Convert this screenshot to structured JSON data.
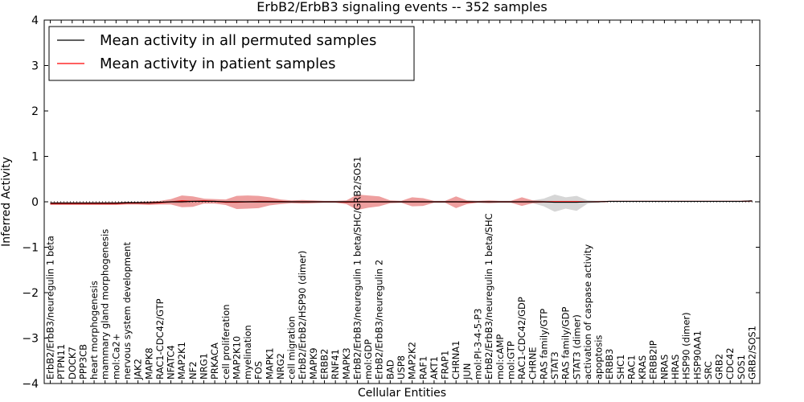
{
  "chart_data": {
    "type": "line",
    "title": "ErbB2/ErbB3 signaling events -- 352 samples",
    "xlabel": "Cellular Entities",
    "ylabel": "Inferred Activity",
    "ylim": [
      -4,
      4
    ],
    "yticks": [
      "4",
      "3",
      "2",
      "1",
      "0",
      "−1",
      "−2",
      "−3",
      "−4"
    ],
    "legend_position": "top-left",
    "colors": {
      "permuted": "#000000",
      "patient": "#ff0000",
      "patient_band": "#e05050",
      "permuted_band": "#bbbbbb"
    },
    "categories": [
      "ErbB2/ErbB3/neuregulin 1 beta",
      "PTPN11",
      "DOCK7",
      "PPP3CB",
      "heart morphogenesis",
      "mammary gland morphogenesis",
      "mol:Ca2+",
      "nervous system development",
      "JAK2",
      "MAPK8",
      "RAC1-CDC42/GTP",
      "NFATC4",
      "MAP2K1",
      "NF2",
      "NRG1",
      "PRKACA",
      "cell proliferation",
      "MAP2K10",
      "myelination",
      "FOS",
      "MAPK1",
      "NRG2",
      "cell migration",
      "ErbB2/ErbB2/HSP90 (dimer)",
      "MAPK9",
      "ERBB2",
      "RNF41",
      "MAPK3",
      "ErbB2/ErbB3/neuregulin 1 beta/SHC/GRB2/SOS1",
      "mol:GDP",
      "ErbB2/ErbB3/neuregulin 2",
      "BAD",
      "USP8",
      "MAP2K2",
      "RAF1",
      "AKT1",
      "FRAP1",
      "CHRNA1",
      "JUN",
      "mol:PI-3-4-5-P3",
      "ErbB2/ErbB3/neuregulin 1 beta/SHC",
      "mol:cAMP",
      "mol:GTP",
      "RAC1-CDC42/GDP",
      "CHRNE",
      "RAS family/GTP",
      "STAT3",
      "RAS family/GDP",
      "STAT3 (dimer)",
      "activation of caspase activity",
      "apoptosis",
      "ERBB3",
      "SHC1",
      "RAC1",
      "KRAS",
      "ERBB2IP",
      "NRAS",
      "HRAS",
      "HSP90 (dimer)",
      "HSP90AA1",
      "SRC",
      "GRB2",
      "CDC42",
      "SOS1",
      "GRB2/SOS1"
    ],
    "series": [
      {
        "name": "Mean activity in all permuted samples",
        "values": [
          -0.03,
          -0.03,
          -0.03,
          -0.03,
          -0.03,
          -0.03,
          -0.03,
          -0.02,
          -0.02,
          -0.02,
          -0.01,
          0.0,
          0.0,
          0.01,
          0.01,
          0.01,
          0.0,
          0.0,
          0.0,
          0.0,
          0.0,
          0.0,
          0.0,
          0.0,
          0.0,
          0.0,
          0.0,
          0.0,
          0.0,
          0.0,
          0.0,
          0.0,
          0.0,
          0.0,
          0.0,
          0.0,
          0.0,
          0.0,
          0.0,
          0.0,
          0.0,
          0.0,
          0.0,
          0.0,
          0.0,
          0.0,
          -0.01,
          -0.01,
          -0.01,
          0.0,
          0.0,
          0.01,
          0.01,
          0.01,
          0.01,
          0.01,
          0.01,
          0.01,
          0.01,
          0.01,
          0.01,
          0.01,
          0.01,
          0.01,
          0.02
        ],
        "upper": [
          0.0,
          0.0,
          0.0,
          0.0,
          0.0,
          0.0,
          0.0,
          0.0,
          0.0,
          0.01,
          0.01,
          0.02,
          0.03,
          0.04,
          0.03,
          0.03,
          0.02,
          0.02,
          0.02,
          0.02,
          0.02,
          0.02,
          0.02,
          0.02,
          0.02,
          0.02,
          0.02,
          0.02,
          0.02,
          0.02,
          0.02,
          0.02,
          0.02,
          0.02,
          0.02,
          0.02,
          0.02,
          0.02,
          0.02,
          0.02,
          0.02,
          0.02,
          0.02,
          0.02,
          0.03,
          0.07,
          0.16,
          0.1,
          0.13,
          0.03,
          0.02,
          0.02,
          0.02,
          0.02,
          0.02,
          0.02,
          0.02,
          0.02,
          0.02,
          0.02,
          0.02,
          0.02,
          0.02,
          0.02,
          0.03
        ],
        "lower": [
          -0.06,
          -0.06,
          -0.06,
          -0.06,
          -0.06,
          -0.06,
          -0.06,
          -0.05,
          -0.05,
          -0.05,
          -0.04,
          -0.03,
          -0.03,
          -0.02,
          -0.02,
          -0.02,
          -0.02,
          -0.02,
          -0.02,
          -0.02,
          -0.02,
          -0.02,
          -0.02,
          -0.02,
          -0.02,
          -0.02,
          -0.02,
          -0.02,
          -0.02,
          -0.02,
          -0.02,
          -0.02,
          -0.02,
          -0.02,
          -0.02,
          -0.02,
          -0.02,
          -0.02,
          -0.02,
          -0.02,
          -0.02,
          -0.02,
          -0.02,
          -0.02,
          -0.03,
          -0.1,
          -0.22,
          -0.15,
          -0.2,
          -0.04,
          -0.01,
          0.0,
          0.0,
          0.0,
          0.0,
          0.0,
          0.0,
          0.0,
          0.0,
          0.0,
          0.0,
          0.0,
          0.0,
          0.0,
          0.0
        ]
      },
      {
        "name": "Mean activity in patient samples",
        "values": [
          -0.04,
          -0.04,
          -0.04,
          -0.04,
          -0.04,
          -0.04,
          -0.04,
          -0.03,
          -0.03,
          -0.03,
          -0.02,
          0.0,
          0.02,
          0.01,
          0.02,
          0.01,
          -0.01,
          -0.01,
          0.0,
          0.01,
          0.01,
          0.01,
          0.0,
          0.0,
          0.0,
          0.0,
          0.0,
          -0.01,
          0.0,
          0.0,
          0.0,
          0.0,
          0.0,
          0.0,
          0.0,
          0.0,
          0.0,
          0.0,
          -0.01,
          0.0,
          0.0,
          0.0,
          0.0,
          0.0,
          0.0,
          0.0,
          0.0,
          0.0,
          0.0,
          0.0,
          0.0,
          0.01,
          0.01,
          0.01,
          0.01,
          0.01,
          0.01,
          0.01,
          0.01,
          0.01,
          0.01,
          0.01,
          0.01,
          0.01,
          0.02
        ],
        "upper": [
          -0.01,
          -0.01,
          -0.01,
          -0.01,
          -0.01,
          -0.01,
          -0.01,
          0.0,
          0.0,
          0.01,
          0.02,
          0.06,
          0.14,
          0.12,
          0.07,
          0.06,
          0.05,
          0.13,
          0.14,
          0.13,
          0.1,
          0.05,
          0.03,
          0.04,
          0.03,
          0.02,
          0.02,
          0.03,
          0.16,
          0.14,
          0.12,
          0.03,
          0.02,
          0.1,
          0.08,
          0.02,
          0.02,
          0.12,
          0.03,
          0.02,
          0.03,
          0.02,
          0.02,
          0.1,
          0.03,
          0.02,
          0.02,
          0.02,
          0.02,
          0.01,
          0.02,
          0.02,
          0.02,
          0.02,
          0.02,
          0.02,
          0.02,
          0.02,
          0.02,
          0.02,
          0.02,
          0.02,
          0.02,
          0.02,
          0.03
        ],
        "lower": [
          -0.07,
          -0.07,
          -0.07,
          -0.07,
          -0.07,
          -0.07,
          -0.07,
          -0.06,
          -0.06,
          -0.07,
          -0.06,
          -0.06,
          -0.12,
          -0.11,
          -0.04,
          -0.04,
          -0.07,
          -0.16,
          -0.15,
          -0.14,
          -0.08,
          -0.05,
          -0.03,
          -0.04,
          -0.03,
          -0.02,
          -0.02,
          -0.05,
          -0.18,
          -0.13,
          -0.1,
          -0.03,
          -0.02,
          -0.1,
          -0.09,
          -0.02,
          -0.02,
          -0.14,
          -0.05,
          -0.02,
          -0.03,
          -0.02,
          -0.02,
          -0.09,
          -0.03,
          -0.02,
          -0.02,
          -0.02,
          -0.02,
          -0.01,
          -0.01,
          0.0,
          0.0,
          0.0,
          0.0,
          0.0,
          0.0,
          0.0,
          0.0,
          0.0,
          0.0,
          0.0,
          0.0,
          0.0,
          0.0
        ]
      }
    ]
  }
}
